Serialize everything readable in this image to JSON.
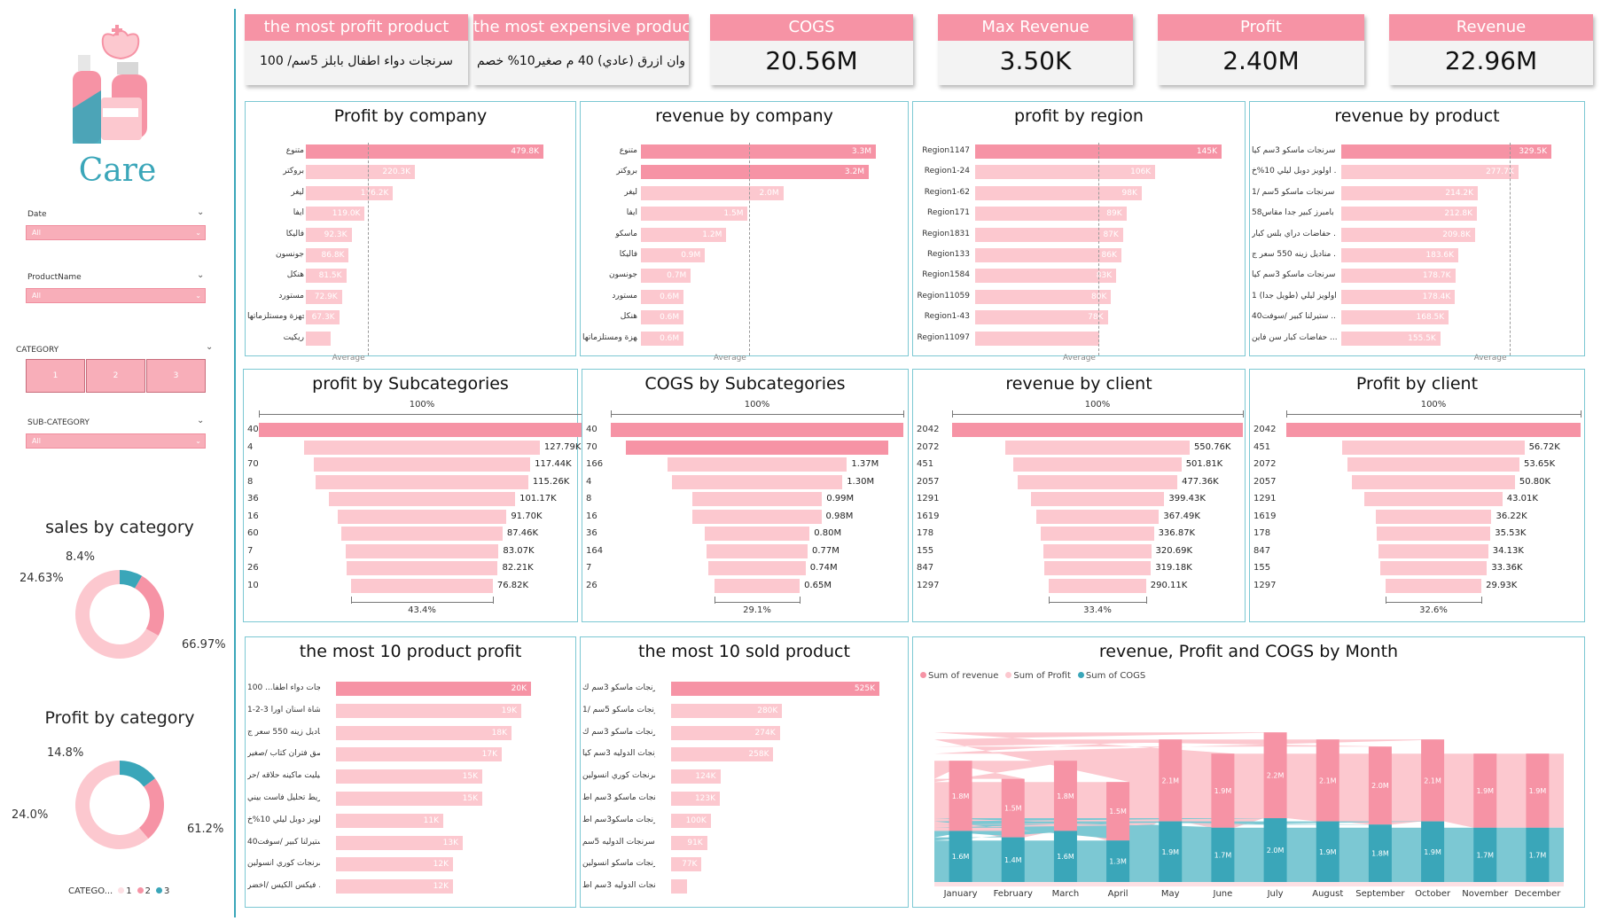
{
  "brand": {
    "title": "Care"
  },
  "filters": {
    "date": {
      "label": "Date",
      "value": "All"
    },
    "product_name": {
      "label": "ProductName",
      "value": "All"
    },
    "category": {
      "label": "CATEGORY",
      "buttons": [
        "1",
        "2",
        "3"
      ]
    },
    "sub_category": {
      "label": "SUB-CATEGORY",
      "value": "All"
    }
  },
  "sales_by_category": {
    "title": "sales by category",
    "labels": [
      "8.4%",
      "24.63%",
      "66.97%"
    ],
    "chart_data": {
      "type": "pie",
      "categories": [
        "3",
        "2",
        "1"
      ],
      "values": [
        8.4,
        24.63,
        66.97
      ]
    }
  },
  "profit_by_category": {
    "title": "Profit by category",
    "labels": [
      "14.8%",
      "24.0%",
      "61.2%"
    ],
    "chart_data": {
      "type": "pie",
      "categories": [
        "3",
        "2",
        "1"
      ],
      "values": [
        14.8,
        24.0,
        61.2
      ]
    }
  },
  "category_legend": {
    "label": "CATEGO...",
    "items": [
      "1",
      "2",
      "3"
    ]
  },
  "colors": {
    "pink": "#f693a5",
    "light_pink": "#fcc8cf",
    "pale_pink": "#fde0e4",
    "teal": "#3aa6b9",
    "teal_light": "#7cc8d3"
  },
  "kpis": [
    {
      "label": "the most profit product",
      "value": "سرنجات دواء اطفال بابلز 5سم/ 100"
    },
    {
      "label": "the most expensive product",
      "value": "وان ازرق (عادي) 40 م صغير10% خصم"
    },
    {
      "label": "COGS",
      "value": "20.56M"
    },
    {
      "label": "Max Revenue",
      "value": "3.50K"
    },
    {
      "label": "Profit",
      "value": "2.40M"
    },
    {
      "label": "Revenue",
      "value": "22.96M"
    }
  ],
  "bar_panels": [
    {
      "title": "Profit by company",
      "avg_label": "Average",
      "chart_data": {
        "type": "bar",
        "categories": [
          "متنوع",
          "بروكتر",
          "ليغر",
          "ايفا",
          "فاليكا",
          "جونسون",
          "هنكل",
          "مستورد",
          "اجهزة ومستلزماتها",
          "ريكيت"
        ],
        "values": [
          479800,
          220300,
          176200,
          119000,
          92300,
          86800,
          81500,
          72900,
          67300,
          50000
        ],
        "value_labels": [
          "479.8K",
          "220.3K",
          "176.2K",
          "119.0K",
          "92.3K",
          "86.8K",
          "81.5K",
          "72.9K",
          "67.3K",
          ""
        ]
      }
    },
    {
      "title": "revenue by company",
      "avg_label": "Average",
      "chart_data": {
        "type": "bar",
        "categories": [
          "متنوع",
          "بروكتر",
          "ليغر",
          "ايفا",
          "ماسكو",
          "فاليكا",
          "جونسون",
          "مستورد",
          "هنكل",
          "اجهزة ومستلزماتها"
        ],
        "values": [
          3.3,
          3.2,
          2.0,
          1.5,
          1.2,
          0.9,
          0.7,
          0.6,
          0.6,
          0.6
        ],
        "value_labels": [
          "3.3M",
          "3.2M",
          "2.0M",
          "1.5M",
          "1.2M",
          "0.9M",
          "0.7M",
          "0.6M",
          "0.6M",
          "0.6M"
        ]
      }
    },
    {
      "title": "profit by region",
      "avg_label": "Average",
      "chart_data": {
        "type": "bar",
        "categories": [
          "Region1147",
          "Region1-24",
          "Region1-62",
          "Region171",
          "Region1831",
          "Region133",
          "Region1584",
          "Region11059",
          "Region1-43",
          "Region11097"
        ],
        "values": [
          145,
          106,
          98,
          89,
          87,
          86,
          83,
          80,
          78,
          73
        ],
        "value_labels": [
          "145K",
          "106K",
          "98K",
          "89K",
          "87K",
          "86K",
          "83K",
          "80K",
          "78K",
          ""
        ]
      }
    },
    {
      "title": "revenue by product",
      "avg_label": "Average",
      "chart_data": {
        "type": "bar",
        "categories": [
          "سرنجات ماسكو 3سم كيا ...",
          "اولويز دوبل ليلي 10%خ ...",
          "سرنجات ماسكو 5سم /1 ...",
          "بامبرز كبير جدا مقاس58 ...",
          "حفاضات دراي بلس كبار ...",
          "مناديل زينه 550 سعر ج ...",
          "سرنجات ماسكو 3سم كيا ...",
          "اولويز ليلي (طويل جدا) 1 ...",
          "ستيرلنا كبير /سوفت40 ...",
          "حفاضات كبار سن فاين ..."
        ],
        "values": [
          329.5,
          277.7,
          214.2,
          212.8,
          209.8,
          183.6,
          178.7,
          178.4,
          168.5,
          155.5
        ],
        "value_labels": [
          "329.5K",
          "277.7K",
          "214.2K",
          "212.8K",
          "209.8K",
          "183.6K",
          "178.7K",
          "178.4K",
          "168.5K",
          "155.5K"
        ]
      }
    },
    {
      "title": "the most 10 product profit",
      "avg_label": "",
      "chart_data": {
        "type": "bar",
        "categories": [
          "سرنجات دواء اطفا... 100",
          "فرشاة اسنان اورا 3-2-1 ...",
          "مناديل زينه 550 سعر ج ...",
          "لاصق فتران كتاب /صغير ...",
          "جيليت ماكينه حلاقه /حر ...",
          "شريط تحليل فاست بيني ...",
          "اولويز دوبل ليلي 10%خ ...",
          "ستيرلنا كبير /سوفت40 ...",
          "سرنجات كوري انسولين ...",
          "فيكس الكيس /اخضر ..."
        ],
        "values": [
          20,
          19,
          18,
          17,
          15,
          15,
          11,
          13,
          12,
          12
        ],
        "value_labels": [
          "20K",
          "19K",
          "18K",
          "17K",
          "15K",
          "15K",
          "11K",
          "13K",
          "12K",
          "12K"
        ]
      }
    },
    {
      "title": "the most 10 sold product",
      "avg_label": "",
      "chart_data": {
        "type": "bar",
        "categories": [
          "سرنجات ماسكو 3سم ك ...",
          "سرنجات ماسكو 5سم /1 ...",
          "سرنجات ماسكو 3سم ك ...",
          "سرنجات الدوليه 3سم كيا ...",
          "سرنجات كوري انسولين ...",
          "سرنجات ماسكو 3سم اط ...",
          "سرنجات ماسكو3سم اط ...",
          "سرنجات الدوليه 5سم /...",
          "سرنجات ماسكو انسولين ...",
          "سرنجات الدوليه 3سم اط ..."
        ],
        "values": [
          525,
          280,
          274,
          258,
          124,
          123,
          100,
          91,
          77,
          40
        ],
        "value_labels": [
          "525K",
          "280K",
          "274K",
          "258K",
          "124K",
          "123K",
          "100K",
          "91K",
          "77K",
          ""
        ]
      }
    }
  ],
  "funnels": [
    {
      "title": "profit by Subcategories",
      "top_pct": "100%",
      "bottom_pct": "43.4%",
      "chart_data": {
        "type": "bar",
        "categories": [
          "40",
          "4",
          "70",
          "8",
          "36",
          "16",
          "60",
          "7",
          "26",
          "10"
        ],
        "values": [
          177000,
          127790,
          117440,
          115260,
          101170,
          91700,
          87460,
          83070,
          82210,
          76820
        ],
        "value_labels": [
          "",
          "127.79K",
          "117.44K",
          "115.26K",
          "101.17K",
          "91.70K",
          "87.46K",
          "83.07K",
          "82.21K",
          "76.82K"
        ]
      }
    },
    {
      "title": "COGS by Subcategories",
      "top_pct": "100%",
      "bottom_pct": "29.1%",
      "chart_data": {
        "type": "bar",
        "categories": [
          "40",
          "70",
          "166",
          "4",
          "8",
          "16",
          "36",
          "164",
          "7",
          "26"
        ],
        "values": [
          2.23,
          2.0,
          1.37,
          1.3,
          0.99,
          0.98,
          0.8,
          0.77,
          0.74,
          0.65
        ],
        "value_labels": [
          "",
          "",
          "1.37M",
          "1.30M",
          "0.99M",
          "0.98M",
          "0.80M",
          "0.77M",
          "0.74M",
          "0.65M"
        ]
      }
    },
    {
      "title": "revenue by client",
      "top_pct": "100%",
      "bottom_pct": "33.4%",
      "chart_data": {
        "type": "bar",
        "categories": [
          "2042",
          "2072",
          "451",
          "2057",
          "1291",
          "1619",
          "178",
          "155",
          "847",
          "1297"
        ],
        "values": [
          869000,
          550760,
          501810,
          477360,
          399430,
          367490,
          336870,
          320690,
          319180,
          290110
        ],
        "value_labels": [
          "",
          "550.76K",
          "501.81K",
          "477.36K",
          "399.43K",
          "367.49K",
          "336.87K",
          "320.69K",
          "319.18K",
          "290.11K"
        ]
      }
    },
    {
      "title": "Profit by client",
      "top_pct": "100%",
      "bottom_pct": "32.6%",
      "chart_data": {
        "type": "bar",
        "categories": [
          "2042",
          "451",
          "2072",
          "2057",
          "1291",
          "1619",
          "178",
          "847",
          "155",
          "1297"
        ],
        "values": [
          91800,
          56720,
          53650,
          50800,
          43010,
          36220,
          35530,
          34130,
          33360,
          29930
        ],
        "value_labels": [
          "",
          "56.72K",
          "53.65K",
          "50.80K",
          "43.01K",
          "36.22K",
          "35.53K",
          "34.13K",
          "33.36K",
          "29.93K"
        ]
      }
    }
  ],
  "monthly": {
    "title": "revenue, Profit and COGS by Month",
    "legend": [
      "Sum of revenue",
      "Sum of Profit",
      "Sum of COGS"
    ],
    "chart_data": {
      "type": "area",
      "categories": [
        "January",
        "February",
        "March",
        "April",
        "May",
        "June",
        "July",
        "August",
        "September",
        "October",
        "November",
        "December"
      ],
      "series": [
        {
          "name": "Sum of revenue",
          "values": [
            1.8,
            1.5,
            1.8,
            1.5,
            2.1,
            1.9,
            2.2,
            2.1,
            2.0,
            2.1,
            1.9,
            1.9
          ],
          "labels": [
            "1.8M",
            "1.5M",
            "1.8M",
            "1.5M",
            "2.1M",
            "1.9M",
            "2.2M",
            "2.1M",
            "2.0M",
            "2.1M",
            "1.9M",
            "1.9M"
          ]
        },
        {
          "name": "Sum of COGS",
          "values": [
            1.6,
            1.4,
            1.6,
            1.3,
            1.9,
            1.7,
            2.0,
            1.9,
            1.8,
            1.9,
            1.7,
            1.7
          ],
          "labels": [
            "1.6M",
            "1.4M",
            "1.6M",
            "1.3M",
            "1.9M",
            "1.7M",
            "2.0M",
            "1.9M",
            "1.8M",
            "1.9M",
            "1.7M",
            "1.7M"
          ]
        }
      ]
    }
  }
}
